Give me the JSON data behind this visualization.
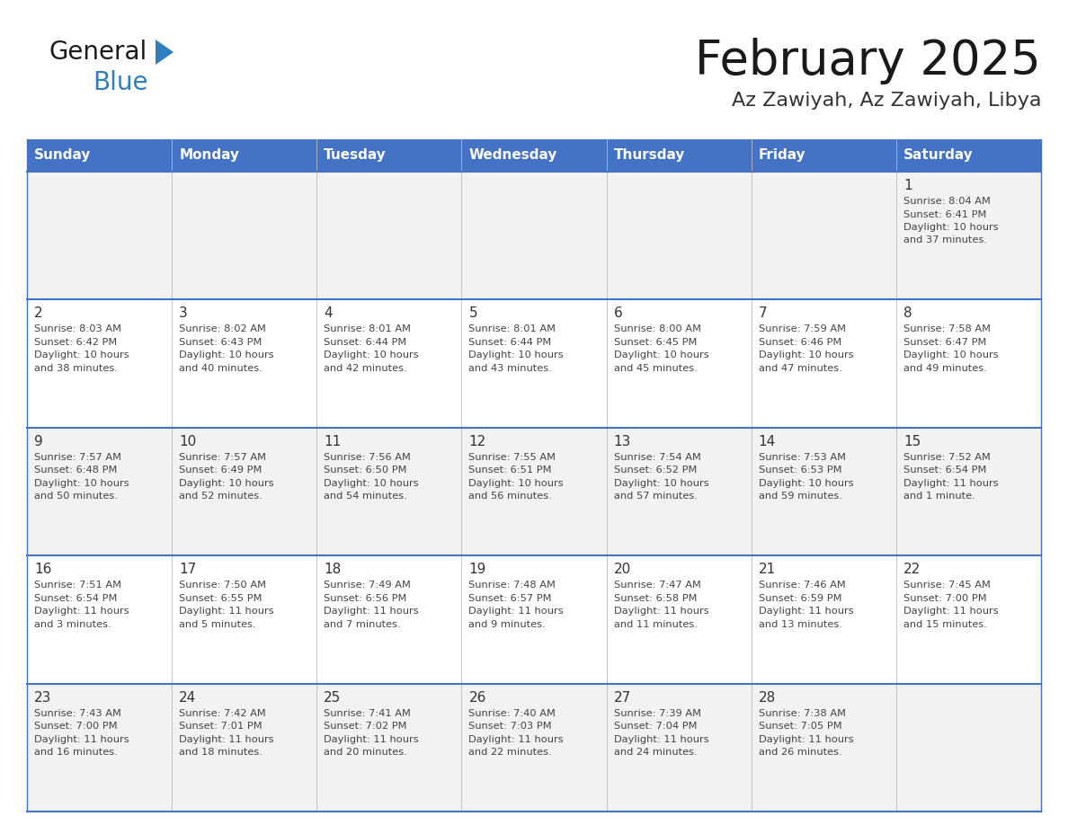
{
  "title": "February 2025",
  "subtitle": "Az Zawiyah, Az Zawiyah, Libya",
  "header_bg": "#4472C4",
  "header_text_color": "#FFFFFF",
  "cell_bg_odd": "#F2F2F2",
  "cell_bg_even": "#FFFFFF",
  "day_names": [
    "Sunday",
    "Monday",
    "Tuesday",
    "Wednesday",
    "Thursday",
    "Friday",
    "Saturday"
  ],
  "title_color": "#1a1a1a",
  "subtitle_color": "#333333",
  "line_color": "#4472C4",
  "day_num_color": "#333333",
  "cell_text_color": "#444444",
  "logo_general_color": "#1a1a1a",
  "logo_blue_color": "#2E7EC1",
  "calendar_data": [
    [
      null,
      null,
      null,
      null,
      null,
      null,
      {
        "day": "1",
        "sunrise": "8:04 AM",
        "sunset": "6:41 PM",
        "daylight_line1": "Daylight: 10 hours",
        "daylight_line2": "and 37 minutes."
      }
    ],
    [
      {
        "day": "2",
        "sunrise": "8:03 AM",
        "sunset": "6:42 PM",
        "daylight_line1": "Daylight: 10 hours",
        "daylight_line2": "and 38 minutes."
      },
      {
        "day": "3",
        "sunrise": "8:02 AM",
        "sunset": "6:43 PM",
        "daylight_line1": "Daylight: 10 hours",
        "daylight_line2": "and 40 minutes."
      },
      {
        "day": "4",
        "sunrise": "8:01 AM",
        "sunset": "6:44 PM",
        "daylight_line1": "Daylight: 10 hours",
        "daylight_line2": "and 42 minutes."
      },
      {
        "day": "5",
        "sunrise": "8:01 AM",
        "sunset": "6:44 PM",
        "daylight_line1": "Daylight: 10 hours",
        "daylight_line2": "and 43 minutes."
      },
      {
        "day": "6",
        "sunrise": "8:00 AM",
        "sunset": "6:45 PM",
        "daylight_line1": "Daylight: 10 hours",
        "daylight_line2": "and 45 minutes."
      },
      {
        "day": "7",
        "sunrise": "7:59 AM",
        "sunset": "6:46 PM",
        "daylight_line1": "Daylight: 10 hours",
        "daylight_line2": "and 47 minutes."
      },
      {
        "day": "8",
        "sunrise": "7:58 AM",
        "sunset": "6:47 PM",
        "daylight_line1": "Daylight: 10 hours",
        "daylight_line2": "and 49 minutes."
      }
    ],
    [
      {
        "day": "9",
        "sunrise": "7:57 AM",
        "sunset": "6:48 PM",
        "daylight_line1": "Daylight: 10 hours",
        "daylight_line2": "and 50 minutes."
      },
      {
        "day": "10",
        "sunrise": "7:57 AM",
        "sunset": "6:49 PM",
        "daylight_line1": "Daylight: 10 hours",
        "daylight_line2": "and 52 minutes."
      },
      {
        "day": "11",
        "sunrise": "7:56 AM",
        "sunset": "6:50 PM",
        "daylight_line1": "Daylight: 10 hours",
        "daylight_line2": "and 54 minutes."
      },
      {
        "day": "12",
        "sunrise": "7:55 AM",
        "sunset": "6:51 PM",
        "daylight_line1": "Daylight: 10 hours",
        "daylight_line2": "and 56 minutes."
      },
      {
        "day": "13",
        "sunrise": "7:54 AM",
        "sunset": "6:52 PM",
        "daylight_line1": "Daylight: 10 hours",
        "daylight_line2": "and 57 minutes."
      },
      {
        "day": "14",
        "sunrise": "7:53 AM",
        "sunset": "6:53 PM",
        "daylight_line1": "Daylight: 10 hours",
        "daylight_line2": "and 59 minutes."
      },
      {
        "day": "15",
        "sunrise": "7:52 AM",
        "sunset": "6:54 PM",
        "daylight_line1": "Daylight: 11 hours",
        "daylight_line2": "and 1 minute."
      }
    ],
    [
      {
        "day": "16",
        "sunrise": "7:51 AM",
        "sunset": "6:54 PM",
        "daylight_line1": "Daylight: 11 hours",
        "daylight_line2": "and 3 minutes."
      },
      {
        "day": "17",
        "sunrise": "7:50 AM",
        "sunset": "6:55 PM",
        "daylight_line1": "Daylight: 11 hours",
        "daylight_line2": "and 5 minutes."
      },
      {
        "day": "18",
        "sunrise": "7:49 AM",
        "sunset": "6:56 PM",
        "daylight_line1": "Daylight: 11 hours",
        "daylight_line2": "and 7 minutes."
      },
      {
        "day": "19",
        "sunrise": "7:48 AM",
        "sunset": "6:57 PM",
        "daylight_line1": "Daylight: 11 hours",
        "daylight_line2": "and 9 minutes."
      },
      {
        "day": "20",
        "sunrise": "7:47 AM",
        "sunset": "6:58 PM",
        "daylight_line1": "Daylight: 11 hours",
        "daylight_line2": "and 11 minutes."
      },
      {
        "day": "21",
        "sunrise": "7:46 AM",
        "sunset": "6:59 PM",
        "daylight_line1": "Daylight: 11 hours",
        "daylight_line2": "and 13 minutes."
      },
      {
        "day": "22",
        "sunrise": "7:45 AM",
        "sunset": "7:00 PM",
        "daylight_line1": "Daylight: 11 hours",
        "daylight_line2": "and 15 minutes."
      }
    ],
    [
      {
        "day": "23",
        "sunrise": "7:43 AM",
        "sunset": "7:00 PM",
        "daylight_line1": "Daylight: 11 hours",
        "daylight_line2": "and 16 minutes."
      },
      {
        "day": "24",
        "sunrise": "7:42 AM",
        "sunset": "7:01 PM",
        "daylight_line1": "Daylight: 11 hours",
        "daylight_line2": "and 18 minutes."
      },
      {
        "day": "25",
        "sunrise": "7:41 AM",
        "sunset": "7:02 PM",
        "daylight_line1": "Daylight: 11 hours",
        "daylight_line2": "and 20 minutes."
      },
      {
        "day": "26",
        "sunrise": "7:40 AM",
        "sunset": "7:03 PM",
        "daylight_line1": "Daylight: 11 hours",
        "daylight_line2": "and 22 minutes."
      },
      {
        "day": "27",
        "sunrise": "7:39 AM",
        "sunset": "7:04 PM",
        "daylight_line1": "Daylight: 11 hours",
        "daylight_line2": "and 24 minutes."
      },
      {
        "day": "28",
        "sunrise": "7:38 AM",
        "sunset": "7:05 PM",
        "daylight_line1": "Daylight: 11 hours",
        "daylight_line2": "and 26 minutes."
      },
      null
    ]
  ]
}
